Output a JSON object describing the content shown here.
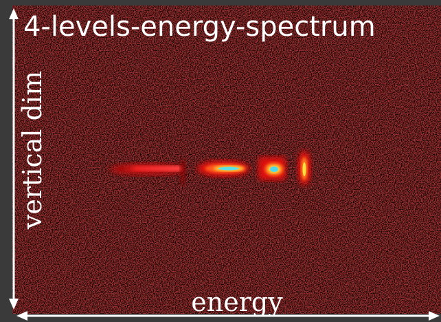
{
  "title": "4-levels-energy-spectrum",
  "y_label": "vertical dim",
  "x_label": "energy"
}
